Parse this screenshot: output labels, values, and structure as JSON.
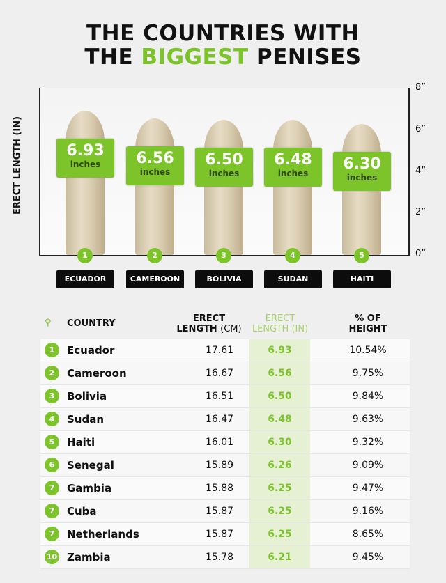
{
  "title": {
    "line1": "THE COUNTRIES WITH",
    "line2_pre": "THE ",
    "line2_accent": "BIGGEST",
    "line2_post": " PENISES"
  },
  "colors": {
    "accent": "#7dc42b",
    "label_bg": "#0c0c0c"
  },
  "chart_data": {
    "type": "bar",
    "ylabel": "ERECT LENGTH (IN)",
    "ylim": [
      0,
      8
    ],
    "yticks": [
      "0”",
      "2”",
      "4”",
      "6”",
      "8”"
    ],
    "unit_label": "inches",
    "categories": [
      "ECUADOR",
      "CAMEROON",
      "BOLIVIA",
      "SUDAN",
      "HAITI"
    ],
    "ranks": [
      "1",
      "2",
      "3",
      "4",
      "5"
    ],
    "values": [
      6.93,
      6.56,
      6.5,
      6.48,
      6.3
    ],
    "value_labels": [
      "6.93",
      "6.56",
      "6.50",
      "6.48",
      "6.30"
    ]
  },
  "table": {
    "headers": {
      "country": "COUNTRY",
      "cm_1": "ERECT",
      "cm_2": "LENGTH",
      "cm_3": "(CM)",
      "in_1": "ERECT",
      "in_2": "LENGTH (IN)",
      "pct_1": "% OF",
      "pct_2": "HEIGHT"
    },
    "rows": [
      {
        "rank": "1",
        "country": "Ecuador",
        "cm": "17.61",
        "in": "6.93",
        "pct": "10.54%"
      },
      {
        "rank": "2",
        "country": "Cameroon",
        "cm": "16.67",
        "in": "6.56",
        "pct": "9.75%"
      },
      {
        "rank": "3",
        "country": "Bolivia",
        "cm": "16.51",
        "in": "6.50",
        "pct": "9.84%"
      },
      {
        "rank": "4",
        "country": "Sudan",
        "cm": "16.47",
        "in": "6.48",
        "pct": "9.63%"
      },
      {
        "rank": "5",
        "country": "Haiti",
        "cm": "16.01",
        "in": "6.30",
        "pct": "9.32%"
      },
      {
        "rank": "6",
        "country": "Senegal",
        "cm": "15.89",
        "in": "6.26",
        "pct": "9.09%"
      },
      {
        "rank": "7",
        "country": "Gambia",
        "cm": "15.88",
        "in": "6.25",
        "pct": "9.47%"
      },
      {
        "rank": "7",
        "country": "Cuba",
        "cm": "15.87",
        "in": "6.25",
        "pct": "9.16%"
      },
      {
        "rank": "7",
        "country": "Netherlands",
        "cm": "15.87",
        "in": "6.25",
        "pct": "8.65%"
      },
      {
        "rank": "10",
        "country": "Zambia",
        "cm": "15.78",
        "in": "6.21",
        "pct": "9.45%"
      }
    ]
  }
}
